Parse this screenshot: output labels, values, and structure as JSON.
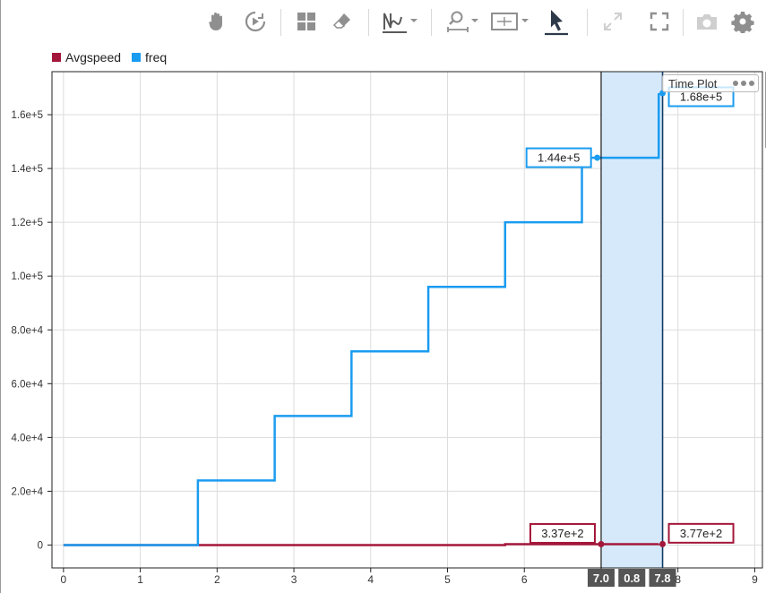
{
  "toolbar": {
    "items": [
      "pan-icon",
      "play-icon",
      "layout-icon",
      "eraser-icon",
      "signal-icon",
      "zoom-icon",
      "fit-icon",
      "cursor-icon",
      "expand-icon",
      "fullscreen-icon",
      "camera-icon",
      "gear-icon"
    ]
  },
  "legend": [
    {
      "name": "Avgspeed",
      "color": "#a3173a"
    },
    {
      "name": "freq",
      "color": "#1a9cf0"
    }
  ],
  "panel_title": "Time Plot",
  "chart_data": {
    "type": "line",
    "step": true,
    "xlim": [
      -0.15,
      9.1
    ],
    "ylim": [
      -8500,
      176000
    ],
    "x_ticks": [
      "0",
      "1",
      "2",
      "3",
      "4",
      "5",
      "6",
      "7",
      "8",
      "9"
    ],
    "y_ticks": [
      "0",
      "2.0e+4",
      "4.0e+4",
      "6.0e+4",
      "8.0e+4",
      "1.0e+5",
      "1.2e+5",
      "1.4e+5",
      "1.6e+5"
    ],
    "y_tick_values": [
      0,
      20000,
      40000,
      60000,
      80000,
      100000,
      120000,
      140000,
      160000
    ],
    "grid": true,
    "series": [
      {
        "name": "freq",
        "color": "#1a9cf0",
        "x": [
          0,
          1.75,
          2.75,
          3.75,
          4.75,
          5.75,
          6.75,
          7.75
        ],
        "y": [
          0,
          24000,
          48000,
          72000,
          96000,
          120000,
          144000,
          168000
        ],
        "x_end": 7.75
      },
      {
        "name": "Avgspeed",
        "color": "#a3173a",
        "x": [
          0,
          5.75,
          7.75
        ],
        "y": [
          0,
          337,
          377
        ],
        "x_end": 7.75
      }
    ],
    "cursors": {
      "left": 7.0,
      "right": 7.8,
      "delta_label": "0.8",
      "left_label": "7.0",
      "right_label": "7.8",
      "fill": "#d6e9fb"
    },
    "markers": [
      {
        "series": "freq",
        "x": 6.95,
        "y": 144000,
        "label": "1.44e+5",
        "side": "left"
      },
      {
        "series": "freq",
        "x": 7.8,
        "y": 168000,
        "label": "1.68e+5",
        "side": "right"
      },
      {
        "series": "Avgspeed",
        "x": 7.0,
        "y": 337,
        "label": "3.37e+2",
        "side": "left"
      },
      {
        "series": "Avgspeed",
        "x": 7.8,
        "y": 377,
        "label": "3.77e+2",
        "side": "right"
      }
    ]
  }
}
